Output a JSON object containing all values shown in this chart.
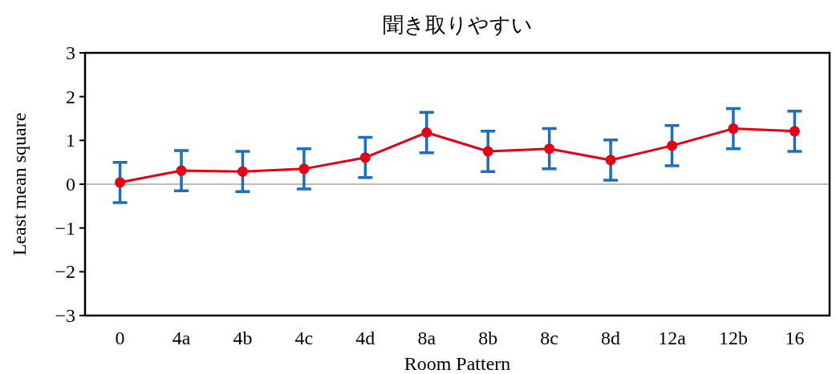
{
  "chart_data": {
    "type": "line",
    "title": "聞き取りやすい",
    "xlabel": "Room Pattern",
    "ylabel": "Least mean square",
    "categories": [
      "0",
      "4a",
      "4b",
      "4c",
      "4d",
      "8a",
      "8b",
      "8c",
      "8d",
      "12a",
      "12b",
      "16"
    ],
    "series": [
      {
        "color": "#e60012",
        "values": [
          0.04,
          0.31,
          0.29,
          0.35,
          0.61,
          1.18,
          0.75,
          0.81,
          0.55,
          0.88,
          1.27,
          1.21
        ],
        "errors": [
          0.46,
          0.46,
          0.46,
          0.46,
          0.46,
          0.46,
          0.46,
          0.46,
          0.46,
          0.46,
          0.46,
          0.46
        ]
      }
    ],
    "ylim": [
      -3,
      3
    ],
    "yticks": [
      3,
      2,
      1,
      0,
      {
        "value": -1,
        "label": "−1"
      },
      {
        "value": -2,
        "label": "−2"
      },
      {
        "value": -3,
        "label": "−3"
      }
    ],
    "ref_lines": [
      {
        "axis": "y",
        "value": 0,
        "color": "#a6a6a6"
      }
    ],
    "marker": "circle",
    "line_style": "solid",
    "grid": false
  }
}
